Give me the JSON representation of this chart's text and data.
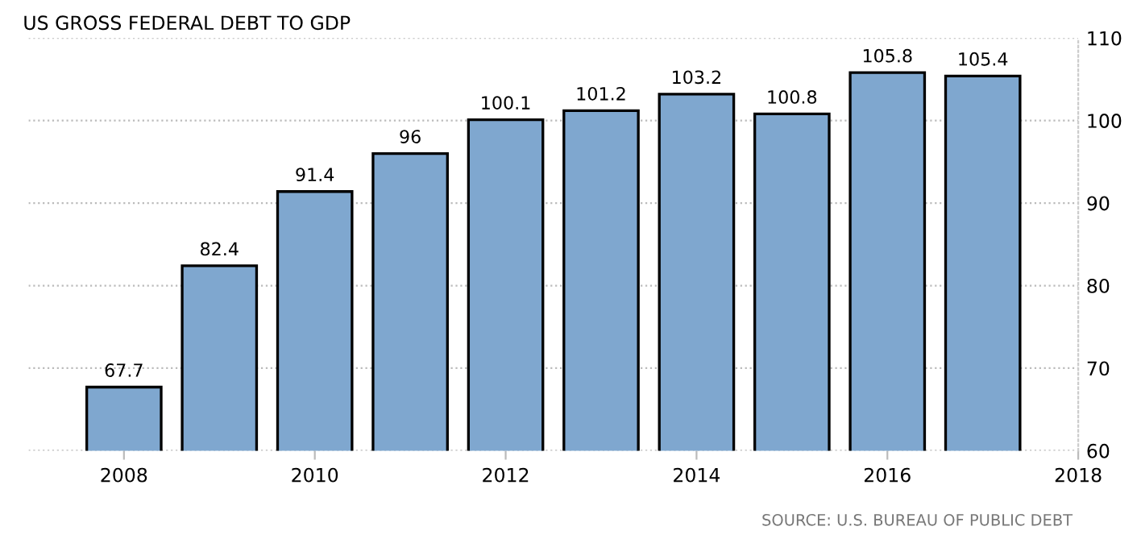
{
  "chart_data": {
    "type": "bar",
    "title": "US GROSS FEDERAL DEBT TO GDP",
    "x": [
      2008,
      2009,
      2010,
      2011,
      2012,
      2013,
      2014,
      2015,
      2016,
      2017
    ],
    "values": [
      67.7,
      82.4,
      91.4,
      96,
      100.1,
      101.2,
      103.2,
      100.8,
      105.8,
      105.4
    ],
    "color": "#7fa7cf",
    "data_labels": true,
    "xlim": [
      2007,
      2018
    ],
    "xticks": [
      2008,
      2010,
      2012,
      2014,
      2016,
      2018
    ],
    "ylim": [
      60,
      110
    ],
    "yticks": [
      60,
      70,
      80,
      90,
      100,
      110
    ],
    "grid": "y",
    "annotations": [
      "SOURCE: U.S. BUREAU OF PUBLIC DEBT"
    ]
  }
}
